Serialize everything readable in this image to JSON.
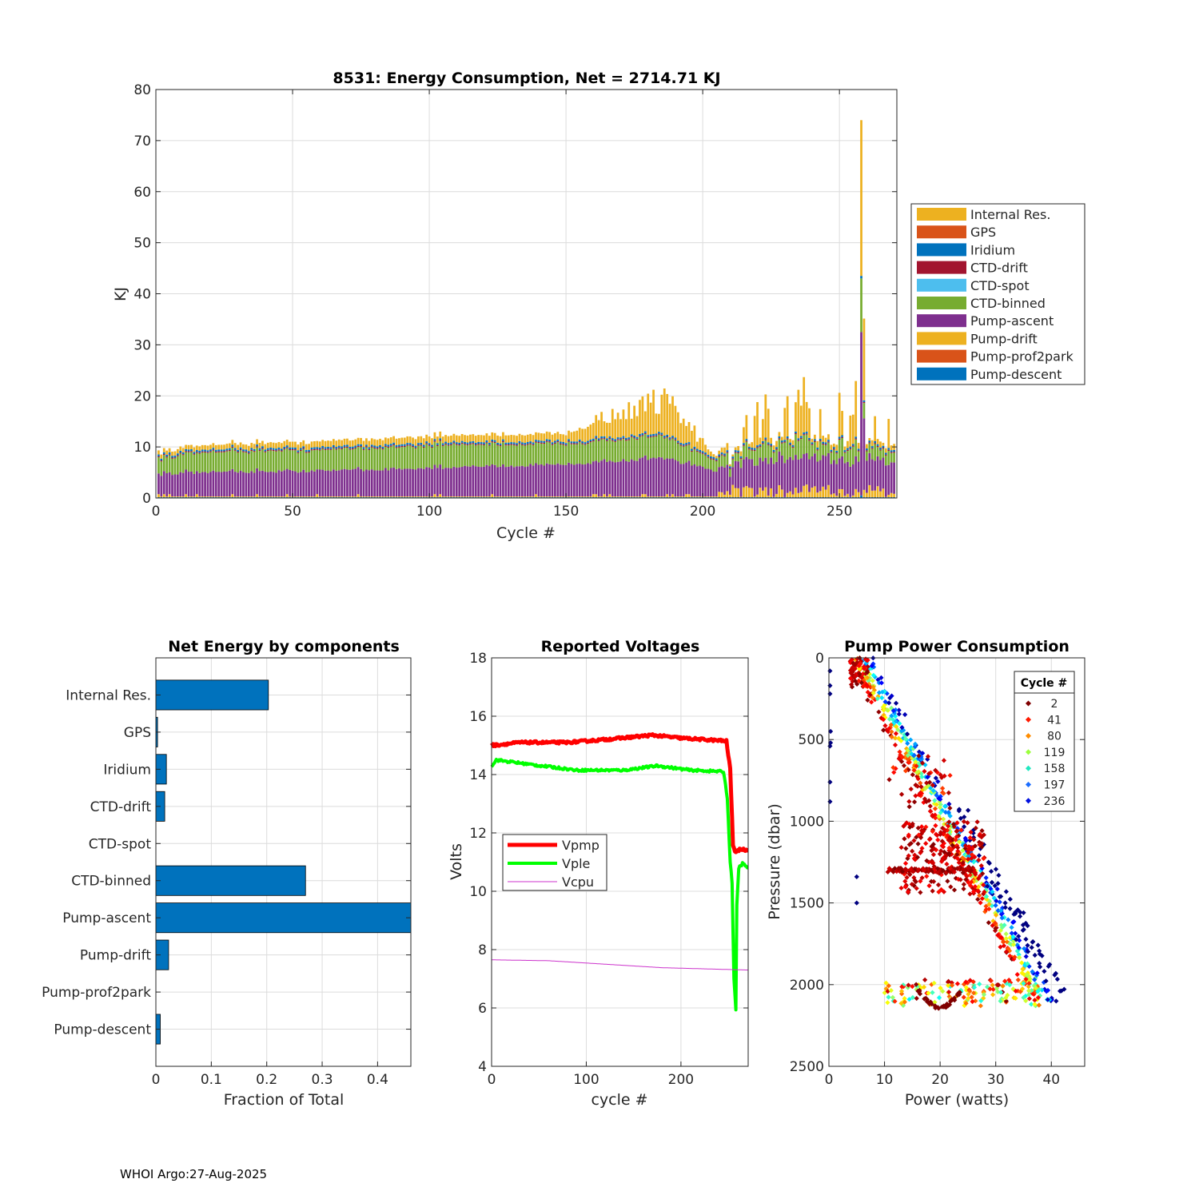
{
  "footer": "WHOI Argo:27-Aug-2025",
  "chart_data": [
    {
      "type": "stacked-bar",
      "title": "8531: Energy Consumption,  Net = 2714.71 KJ",
      "xlabel": "Cycle #",
      "ylabel": "KJ",
      "xlim": [
        0,
        271
      ],
      "ylim": [
        0,
        80
      ],
      "xticks": [
        0,
        50,
        100,
        150,
        200,
        250
      ],
      "yticks": [
        0,
        10,
        20,
        30,
        40,
        50,
        60,
        70,
        80
      ],
      "grid": true,
      "legend_position": "outside-right",
      "series": [
        {
          "name": "Internal Res.",
          "color": "#EDB120"
        },
        {
          "name": "GPS",
          "color": "#D95319"
        },
        {
          "name": "Iridium",
          "color": "#0072BD"
        },
        {
          "name": "CTD-drift",
          "color": "#A2142F"
        },
        {
          "name": "CTD-spot",
          "color": "#4DBEEE"
        },
        {
          "name": "CTD-binned",
          "color": "#77AC30"
        },
        {
          "name": "Pump-ascent",
          "color": "#7E2F8E"
        },
        {
          "name": "Pump-drift",
          "color": "#EDB120"
        },
        {
          "name": "Pump-prof2park",
          "color": "#D95319"
        },
        {
          "name": "Pump-descent",
          "color": "#0072BD"
        }
      ],
      "cycles": 270,
      "profile_keypoints": [
        {
          "cycle": 1,
          "pump_ascent": 4.3,
          "ctd_binned": 3.0,
          "internal_res": 0.8
        },
        {
          "cycle": 20,
          "pump_ascent": 4.8,
          "ctd_binned": 4.0,
          "internal_res": 0.9
        },
        {
          "cycle": 60,
          "pump_ascent": 5.0,
          "ctd_binned": 4.0,
          "internal_res": 1.2
        },
        {
          "cycle": 100,
          "pump_ascent": 5.6,
          "ctd_binned": 4.4,
          "internal_res": 1.3
        },
        {
          "cycle": 150,
          "pump_ascent": 6.3,
          "ctd_binned": 4.0,
          "internal_res": 1.5
        },
        {
          "cycle": 185,
          "pump_ascent": 7.5,
          "ctd_binned": 4.2,
          "internal_res": 7.0
        },
        {
          "cycle": 205,
          "pump_ascent": 5.0,
          "ctd_binned": 2.0,
          "internal_res": 0.5
        },
        {
          "cycle": 230,
          "pump_ascent": 6.5,
          "ctd_binned": 4.0,
          "internal_res": 6.0
        },
        {
          "cycle": 258,
          "total": 74
        },
        {
          "cycle": 268,
          "pump_ascent": 6.0,
          "ctd_binned": 3.0,
          "internal_res": 3.0
        }
      ]
    },
    {
      "type": "barh",
      "title": "Net Energy by components",
      "xlabel": "Fraction of Total",
      "categories": [
        "Internal Res.",
        "GPS",
        "Iridium",
        "CTD-drift",
        "CTD-spot",
        "CTD-binned",
        "Pump-ascent",
        "Pump-drift",
        "Pump-prof2park",
        "Pump-descent"
      ],
      "values": [
        0.203,
        0.003,
        0.019,
        0.016,
        0.0,
        0.27,
        0.46,
        0.023,
        0.0,
        0.008
      ],
      "xlim": [
        0,
        0.46
      ],
      "xticks": [
        "0",
        "0.1",
        "0.2",
        "0.3",
        "0.4"
      ],
      "color": "#0072BD"
    },
    {
      "type": "line",
      "title": "Reported Voltages",
      "xlabel": "cycle #",
      "ylabel": "Volts",
      "xlim": [
        0,
        271
      ],
      "ylim": [
        4,
        18
      ],
      "xticks": [
        0,
        100,
        200
      ],
      "yticks": [
        4,
        6,
        8,
        10,
        12,
        14,
        16,
        18
      ],
      "series": [
        {
          "name": "Vpmp",
          "color": "#FF0000",
          "points": [
            [
              0,
              15.1
            ],
            [
              2,
              15.0
            ],
            [
              30,
              15.1
            ],
            [
              80,
              15.1
            ],
            [
              120,
              15.2
            ],
            [
              170,
              15.35
            ],
            [
              200,
              15.25
            ],
            [
              248,
              15.15
            ],
            [
              252,
              14.2
            ],
            [
              255,
              11.6
            ],
            [
              258,
              11.3
            ],
            [
              262,
              11.45
            ],
            [
              271,
              11.4
            ]
          ]
        },
        {
          "name": "Vple",
          "color": "#00FF00",
          "points": [
            [
              0,
              14.3
            ],
            [
              5,
              14.5
            ],
            [
              40,
              14.35
            ],
            [
              90,
              14.15
            ],
            [
              140,
              14.15
            ],
            [
              175,
              14.3
            ],
            [
              210,
              14.15
            ],
            [
              245,
              14.1
            ],
            [
              249,
              13.2
            ],
            [
              252,
              11.0
            ],
            [
              254,
              10.3
            ],
            [
              256,
              7.0
            ],
            [
              258,
              5.9
            ],
            [
              259,
              9.5
            ],
            [
              261,
              10.8
            ],
            [
              265,
              10.95
            ],
            [
              271,
              10.8
            ]
          ]
        },
        {
          "name": "Vcpu",
          "color": "#CC33CC",
          "points": [
            [
              0,
              7.65
            ],
            [
              60,
              7.62
            ],
            [
              120,
              7.5
            ],
            [
              180,
              7.38
            ],
            [
              271,
              7.3
            ]
          ]
        }
      ]
    },
    {
      "type": "scatter",
      "title": "Pump Power Consumption",
      "xlabel": "Power (watts)",
      "ylabel": "Pressure (dbar)",
      "xlim": [
        0,
        46
      ],
      "ylim": [
        2500,
        0
      ],
      "xticks": [
        0,
        10,
        20,
        30,
        40
      ],
      "yticks": [
        0,
        500,
        1000,
        1500,
        2000,
        2500
      ],
      "legend_title": "Cycle #",
      "legend": [
        {
          "label": "2",
          "color": "#800000"
        },
        {
          "label": "41",
          "color": "#FF1A00"
        },
        {
          "label": "80",
          "color": "#FF8C00"
        },
        {
          "label": "119",
          "color": "#9CFF3C"
        },
        {
          "label": "158",
          "color": "#20E8C0"
        },
        {
          "label": "197",
          "color": "#1A6CFF"
        },
        {
          "label": "236",
          "color": "#0010E0"
        }
      ],
      "trend": "pressure increases roughly linearly with pump power from (4 W, 0 dbar) to (38 W, 2100 dbar); clusters near 15-25 W between 1100-1400 dbar and 1950-2150 dbar"
    }
  ]
}
